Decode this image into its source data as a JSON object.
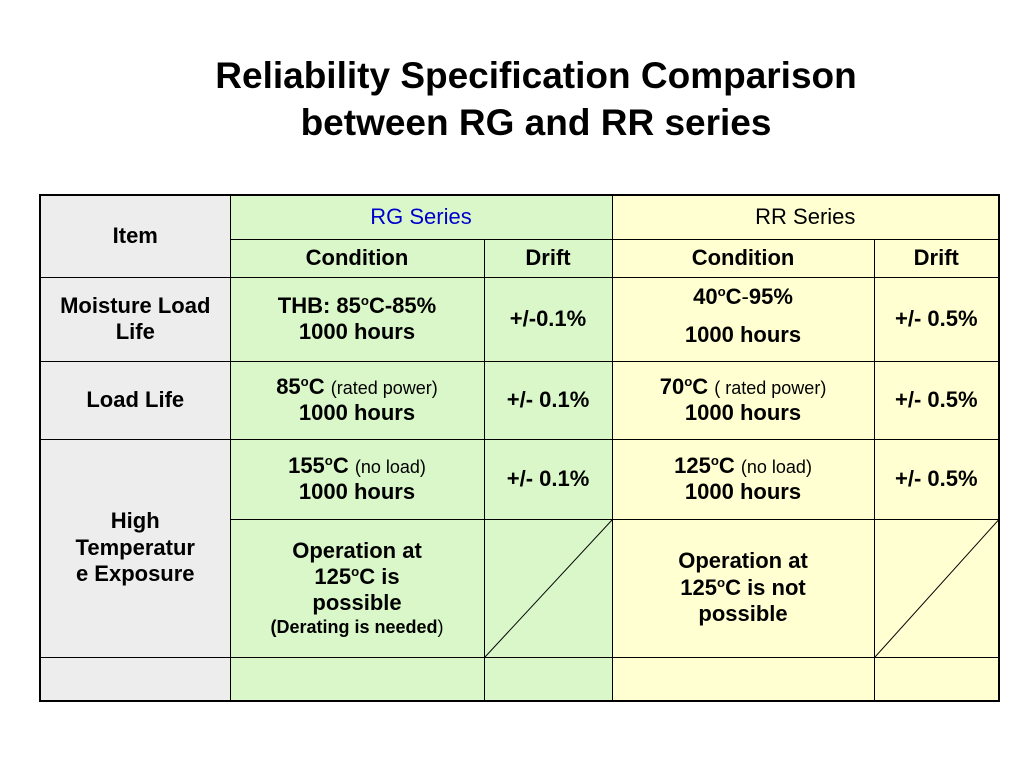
{
  "title": {
    "line1": "Reliability Specification Comparison",
    "line2": "between RG and RR series"
  },
  "header": {
    "item": "Item",
    "rg_series": "RG Series",
    "rr_series": "RR Series",
    "condition": "Condition",
    "drift": "Drift"
  },
  "rows": {
    "moisture": {
      "item": "Moisture Load Life",
      "rg_condition_a": "THB: 85",
      "rg_condition_b": "C-85%",
      "rg_condition_c": "1000 hours",
      "rg_drift": "+/-0.1%",
      "rr_condition_a": "40",
      "rr_condition_b": "C",
      "rr_condition_c": "-",
      "rr_condition_d": "95%",
      "rr_condition_e": "1000 hours",
      "rr_drift": "+/- 0.5%"
    },
    "load_life": {
      "item": "Load Life",
      "rg_temp": "85",
      "rg_unit": "C",
      "rg_note": "(rated power)",
      "rg_hours": "1000 hours",
      "rg_drift": "+/- 0.1%",
      "rr_temp": "70",
      "rr_unit": "C",
      "rr_note": "( rated power)",
      "rr_hours": "1000 hours",
      "rr_drift": "+/- 0.5%"
    },
    "high_temp": {
      "item_line1": "High",
      "item_line2": "Temperatur",
      "item_line3": "e Exposure",
      "rg_temp": "155",
      "rg_unit": "C",
      "rg_note": "(no load)",
      "rg_hours": "1000 hours",
      "rg_drift": "+/- 0.1%",
      "rr_temp": "125",
      "rr_unit": "C",
      "rr_note": "(no load)",
      "rr_hours": "1000 hours",
      "rr_drift": "+/- 0.5%",
      "rg_op_line1": "Operation at",
      "rg_op_line2a": "125",
      "rg_op_line2b": "C is",
      "rg_op_line3": "possible",
      "rg_op_line4": "(Derating is needed",
      "rg_op_line4_close": ")",
      "rr_op_line1": "Operation at",
      "rr_op_line2a": "125",
      "rr_op_line2b": "C is not",
      "rr_op_line3": "possible"
    }
  },
  "degree_symbol": "o",
  "colors": {
    "rg_background": "#d9f7c8",
    "rr_background": "#ffffd2",
    "item_background": "#ededed",
    "rg_text": "#0000cc"
  }
}
